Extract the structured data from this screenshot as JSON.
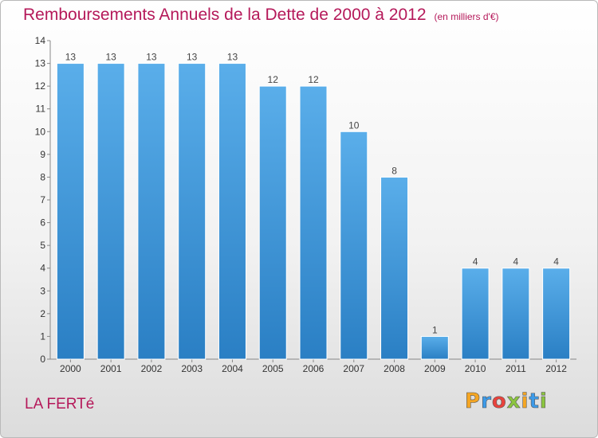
{
  "header": {
    "title": "Remboursements Annuels de la Dette de 2000 à 2012",
    "subtitle": "(en milliers d'€)"
  },
  "commune": "LA FERTé",
  "logo": {
    "letters": [
      {
        "ch": "P",
        "color": "#f5a623"
      },
      {
        "ch": "r",
        "color": "#3d9be9"
      },
      {
        "ch": "o",
        "color": "#e9433d"
      },
      {
        "ch": "x",
        "color": "#8cc63f"
      },
      {
        "ch": "i",
        "color": "#f5a623"
      },
      {
        "ch": "t",
        "color": "#3d9be9"
      },
      {
        "ch": "i",
        "color": "#8cc63f"
      }
    ]
  },
  "chart_data": {
    "type": "bar",
    "title": "Remboursements Annuels de la Dette de 2000 à 2012",
    "subtitle": "(en milliers d'€)",
    "categories": [
      "2000",
      "2001",
      "2002",
      "2003",
      "2004",
      "2005",
      "2006",
      "2007",
      "2008",
      "2009",
      "2010",
      "2011",
      "2012"
    ],
    "values": [
      13,
      13,
      13,
      13,
      13,
      12,
      12,
      10,
      8,
      1,
      4,
      4,
      4
    ],
    "ylim": [
      0,
      14
    ],
    "yticks": [
      0,
      1,
      2,
      3,
      4,
      5,
      6,
      7,
      8,
      9,
      10,
      11,
      12,
      13,
      14
    ],
    "grid": false,
    "bar_color_top": "#5aaeea",
    "bar_color_bottom": "#2a7fc4"
  }
}
